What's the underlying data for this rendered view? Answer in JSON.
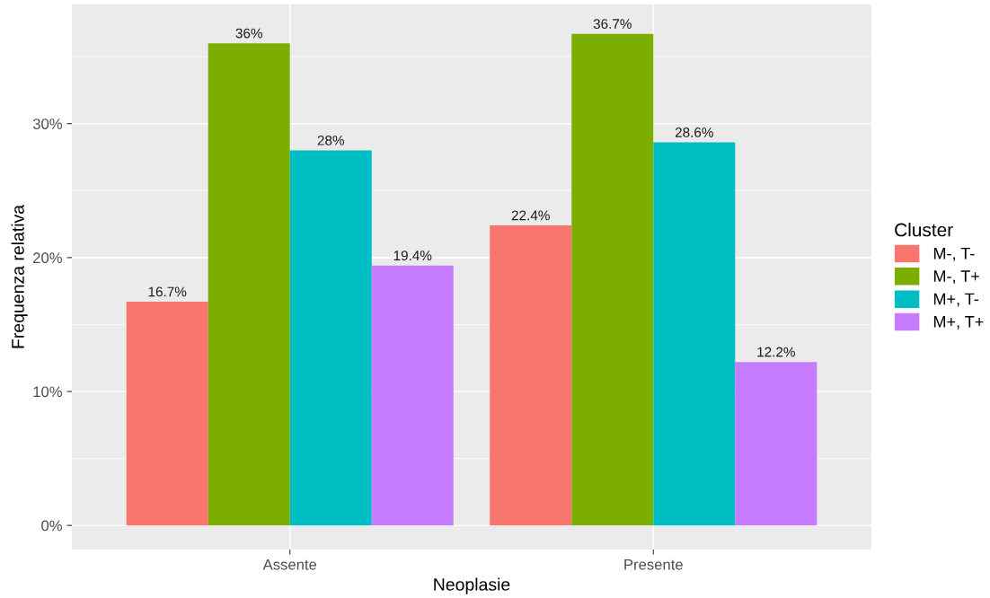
{
  "chart_data": {
    "type": "bar",
    "xlabel": "Neoplasie",
    "ylabel": "Frequenza relativa",
    "legend_title": "Cluster",
    "categories": [
      "Assente",
      "Presente"
    ],
    "series": [
      {
        "name": "M-, T-",
        "color": "#f8766d",
        "values": [
          16.7,
          22.4
        ],
        "value_labels": [
          "16.7%",
          "22.4%"
        ]
      },
      {
        "name": "M-, T+",
        "color": "#7cae00",
        "values": [
          36,
          36.7
        ],
        "value_labels": [
          "36%",
          "36.7%"
        ]
      },
      {
        "name": "M+, T-",
        "color": "#00bfc4",
        "values": [
          28,
          28.6
        ],
        "value_labels": [
          "28%",
          "28.6%"
        ]
      },
      {
        "name": "M+, T+",
        "color": "#c77cff",
        "values": [
          19.4,
          12.2
        ],
        "value_labels": [
          "19.4%",
          "12.2%"
        ]
      }
    ],
    "ylim": [
      -1.8,
      38.9
    ],
    "yticks": [
      {
        "value": 0,
        "label": "0%"
      },
      {
        "value": 10,
        "label": "10%"
      },
      {
        "value": 20,
        "label": "20%"
      },
      {
        "value": 30,
        "label": "30%"
      }
    ],
    "grid": true,
    "legend": "right"
  }
}
